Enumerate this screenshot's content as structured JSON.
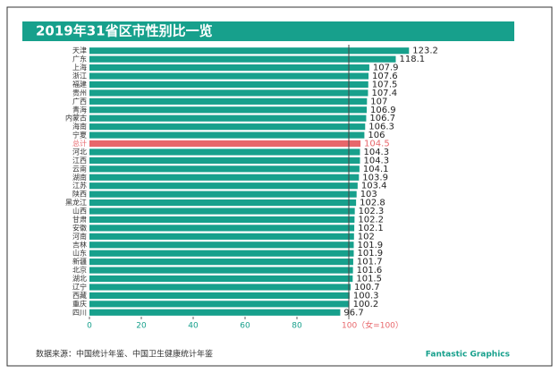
{
  "chart_data": {
    "type": "hbar",
    "title": "2019年31省区市性别比一览",
    "categories": [
      "天津",
      "广东",
      "上海",
      "浙江",
      "福建",
      "贵州",
      "广西",
      "青海",
      "内蒙古",
      "海南",
      "宁夏",
      "总计",
      "河北",
      "江西",
      "云南",
      "湖南",
      "江苏",
      "陕西",
      "黑龙江",
      "山西",
      "甘肃",
      "安徽",
      "河南",
      "吉林",
      "山东",
      "新疆",
      "北京",
      "湖北",
      "辽宁",
      "西藏",
      "重庆",
      "四川"
    ],
    "values": [
      123.2,
      118.1,
      107.9,
      107.6,
      107.5,
      107.4,
      107,
      106.9,
      106.7,
      106.3,
      106,
      104.5,
      104.3,
      104.3,
      104.1,
      103.9,
      103.4,
      103,
      102.8,
      102.3,
      102.2,
      102.1,
      102,
      101.9,
      101.9,
      101.7,
      101.6,
      101.5,
      100.7,
      100.3,
      100.2,
      96.7
    ],
    "colors": [
      "#17a08c",
      "#17a08c",
      "#17a08c",
      "#17a08c",
      "#17a08c",
      "#17a08c",
      "#17a08c",
      "#17a08c",
      "#17a08c",
      "#17a08c",
      "#17a08c",
      "#e8676b",
      "#17a08c",
      "#17a08c",
      "#17a08c",
      "#17a08c",
      "#17a08c",
      "#17a08c",
      "#17a08c",
      "#17a08c",
      "#17a08c",
      "#17a08c",
      "#17a08c",
      "#17a08c",
      "#17a08c",
      "#17a08c",
      "#17a08c",
      "#17a08c",
      "#17a08c",
      "#17a08c",
      "#17a08c",
      "#17a08c"
    ],
    "xlim": [
      0,
      125
    ],
    "xticks": [
      0,
      20,
      40,
      60,
      80,
      {
        "value": 100,
        "label": "100（女=100）"
      }
    ],
    "reference_line": 100,
    "source": "数据来源：中国统计年鉴、中国卫生健康统计年鉴",
    "brand": "Fantastic Graphics"
  }
}
